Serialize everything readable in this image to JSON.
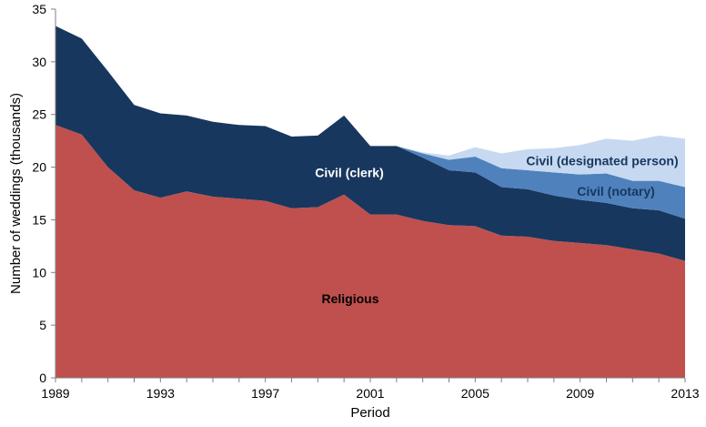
{
  "chart_data": {
    "type": "area",
    "stacked": true,
    "title": "",
    "xlabel": "Period",
    "ylabel": "Number of weddings (thousands)",
    "x": [
      1989,
      1990,
      1991,
      1992,
      1993,
      1994,
      1995,
      1996,
      1997,
      1998,
      1999,
      2000,
      2001,
      2002,
      2003,
      2004,
      2005,
      2006,
      2007,
      2008,
      2009,
      2010,
      2011,
      2012,
      2013
    ],
    "xticks": [
      1989,
      1993,
      1997,
      2001,
      2005,
      2009,
      2013
    ],
    "ylim": [
      0,
      35
    ],
    "yticks": [
      0,
      5,
      10,
      15,
      20,
      25,
      30,
      35
    ],
    "grid": false,
    "series": [
      {
        "name": "Religious",
        "color": "#c0504d",
        "values": [
          24.0,
          23.1,
          20.0,
          17.8,
          17.1,
          17.7,
          17.2,
          17.0,
          16.8,
          16.1,
          16.2,
          17.4,
          15.5,
          15.5,
          14.9,
          14.5,
          14.4,
          13.5,
          13.4,
          13.0,
          12.8,
          12.6,
          12.2,
          11.8,
          11.1
        ]
      },
      {
        "name": "Civil (clerk)",
        "color": "#17375e",
        "values": [
          9.4,
          9.1,
          9.1,
          8.1,
          8.0,
          7.2,
          7.1,
          7.0,
          7.1,
          6.8,
          6.8,
          7.5,
          6.5,
          6.5,
          6.0,
          5.2,
          5.1,
          4.6,
          4.5,
          4.3,
          4.1,
          4.0,
          3.9,
          4.1,
          4.0
        ]
      },
      {
        "name": "Civil (notary)",
        "color": "#4f81bd",
        "values": [
          0,
          0,
          0,
          0,
          0,
          0,
          0,
          0,
          0,
          0,
          0,
          0,
          0,
          0,
          0.4,
          1.0,
          1.5,
          1.8,
          1.8,
          2.2,
          2.4,
          2.8,
          2.6,
          2.8,
          3.0
        ]
      },
      {
        "name": "Civil (designated person)",
        "color": "#c6d9f1",
        "values": [
          0,
          0,
          0,
          0,
          0,
          0,
          0,
          0,
          0,
          0,
          0,
          0,
          0,
          0,
          0.1,
          0.4,
          0.9,
          1.4,
          2.0,
          2.3,
          2.8,
          3.3,
          3.8,
          4.3,
          4.6
        ]
      }
    ],
    "annotations": [
      {
        "series": "Religious",
        "text": "Religious",
        "color": "#000000"
      },
      {
        "series": "Civil (clerk)",
        "text": "Civil (clerk)",
        "color": "#ffffff"
      },
      {
        "series": "Civil (notary)",
        "text": "Civil (notary)",
        "color": "#17375e"
      },
      {
        "series": "Civil (designated person)",
        "text": "Civil (designated person)",
        "color": "#17375e"
      }
    ]
  }
}
